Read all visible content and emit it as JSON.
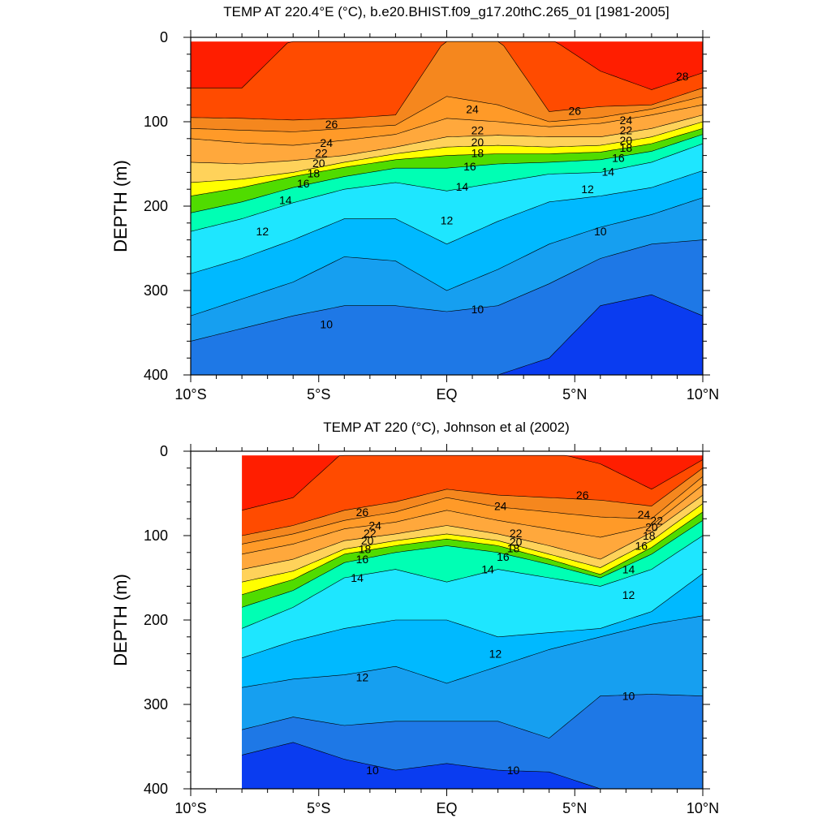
{
  "chart_data": [
    {
      "type": "contour",
      "title": "TEMP AT 220.4°E (°C), b.e20.BHIST.f09_g17.20thC.265_01 [1981-2005]",
      "ylabel": "DEPTH (m)",
      "xlabel": "",
      "x_ticks": [
        "10°S",
        "5°S",
        "EQ",
        "5°N",
        "10°N"
      ],
      "x_tick_values": [
        -10,
        -5,
        0,
        5,
        10
      ],
      "y_ticks": [
        "0",
        "100",
        "200",
        "300",
        "400"
      ],
      "y_tick_values": [
        0,
        100,
        200,
        300,
        400
      ],
      "xlim": [
        -10,
        10
      ],
      "ylim": [
        0,
        400
      ],
      "y_reversed": true,
      "contour_interval": 1,
      "contour_levels": [
        8,
        9,
        10,
        11,
        12,
        13,
        14,
        15,
        16,
        17,
        18,
        19,
        20,
        21,
        22,
        23,
        24,
        25,
        26,
        27,
        28
      ],
      "data_extent": {
        "lat": [
          -10,
          10
        ],
        "depth": [
          5,
          400
        ]
      },
      "isotherm_depths": {
        "lat": [
          -10,
          -8,
          -6,
          -4,
          -2,
          0,
          2,
          4,
          6,
          8,
          10
        ],
        "27": [
          60,
          60,
          0,
          0,
          0,
          0,
          0,
          0,
          40,
          62,
          42
        ],
        "26": [
          95,
          96,
          98,
          96,
          92,
          0,
          0,
          88,
          82,
          80,
          60
        ],
        "25": [
          108,
          110,
          112,
          108,
          104,
          70,
          80,
          100,
          95,
          85,
          70
        ],
        "24": [
          120,
          125,
          128,
          122,
          115,
          96,
          100,
          106,
          102,
          92,
          80
        ],
        "22": [
          148,
          150,
          146,
          140,
          130,
          118,
          116,
          118,
          118,
          108,
          92
        ],
        "20": [
          172,
          168,
          160,
          148,
          138,
          130,
          128,
          130,
          128,
          118,
          100
        ],
        "18": [
          188,
          178,
          165,
          154,
          145,
          140,
          138,
          138,
          136,
          126,
          108
        ],
        "16": [
          208,
          195,
          178,
          165,
          155,
          155,
          150,
          148,
          145,
          135,
          115
        ],
        "14": [
          230,
          215,
          196,
          180,
          172,
          182,
          172,
          162,
          160,
          148,
          126
        ],
        "12": [
          280,
          262,
          240,
          215,
          215,
          245,
          218,
          195,
          188,
          178,
          158
        ],
        "11": [
          330,
          310,
          290,
          260,
          265,
          300,
          275,
          245,
          225,
          210,
          190
        ],
        "10": [
          360,
          345,
          330,
          318,
          318,
          325,
          318,
          292,
          262,
          245,
          240
        ],
        "9": [
          400,
          400,
          400,
          400,
          400,
          400,
          400,
          380,
          318,
          305,
          330
        ]
      },
      "labels": [
        {
          "text": "28",
          "lat": 9.2,
          "depth": 46
        },
        {
          "text": "26",
          "lat": -4.5,
          "depth": 103
        },
        {
          "text": "26",
          "lat": 5.0,
          "depth": 87
        },
        {
          "text": "24",
          "lat": 1.0,
          "depth": 85
        },
        {
          "text": "24",
          "lat": 7.0,
          "depth": 98
        },
        {
          "text": "24",
          "lat": -4.7,
          "depth": 125
        },
        {
          "text": "22",
          "lat": 1.2,
          "depth": 110
        },
        {
          "text": "22",
          "lat": 7.0,
          "depth": 110
        },
        {
          "text": "22",
          "lat": -4.9,
          "depth": 137
        },
        {
          "text": "20",
          "lat": 1.2,
          "depth": 124
        },
        {
          "text": "20",
          "lat": 7.0,
          "depth": 122
        },
        {
          "text": "20",
          "lat": -5.0,
          "depth": 149
        },
        {
          "text": "18",
          "lat": 1.2,
          "depth": 137
        },
        {
          "text": "18",
          "lat": 7.0,
          "depth": 131
        },
        {
          "text": "18",
          "lat": -5.2,
          "depth": 161
        },
        {
          "text": "16",
          "lat": 0.9,
          "depth": 153
        },
        {
          "text": "16",
          "lat": 6.7,
          "depth": 143
        },
        {
          "text": "16",
          "lat": -5.6,
          "depth": 173
        },
        {
          "text": "14",
          "lat": 0.6,
          "depth": 177
        },
        {
          "text": "14",
          "lat": 6.3,
          "depth": 159
        },
        {
          "text": "14",
          "lat": -6.3,
          "depth": 193
        },
        {
          "text": "12",
          "lat": 0.0,
          "depth": 217
        },
        {
          "text": "12",
          "lat": 5.5,
          "depth": 180
        },
        {
          "text": "12",
          "lat": -7.2,
          "depth": 230
        },
        {
          "text": "10",
          "lat": 1.2,
          "depth": 322
        },
        {
          "text": "10",
          "lat": 6.0,
          "depth": 230
        },
        {
          "text": "10",
          "lat": -4.7,
          "depth": 340
        }
      ]
    },
    {
      "type": "contour",
      "title": "TEMP AT 220 (°C), Johnson et al (2002)",
      "ylabel": "DEPTH (m)",
      "xlabel": "",
      "x_ticks": [
        "10°S",
        "5°S",
        "EQ",
        "5°N",
        "10°N"
      ],
      "x_tick_values": [
        -10,
        -5,
        0,
        5,
        10
      ],
      "y_ticks": [
        "0",
        "100",
        "200",
        "300",
        "400"
      ],
      "y_tick_values": [
        0,
        100,
        200,
        300,
        400
      ],
      "xlim": [
        -10,
        10
      ],
      "ylim": [
        0,
        400
      ],
      "y_reversed": true,
      "contour_interval": 1,
      "contour_levels": [
        9,
        10,
        11,
        12,
        13,
        14,
        15,
        16,
        17,
        18,
        19,
        20,
        21,
        22,
        23,
        24,
        25,
        26,
        27
      ],
      "data_extent": {
        "lat": [
          -8,
          10
        ],
        "depth": [
          5,
          400
        ]
      },
      "isotherm_depths": {
        "lat": [
          -8,
          -6,
          -4,
          -2,
          0,
          2,
          4,
          6,
          8,
          10
        ],
        "27": [
          70,
          55,
          0,
          0,
          0,
          0,
          0,
          15,
          45,
          10
        ],
        "26": [
          100,
          88,
          70,
          60,
          45,
          52,
          55,
          58,
          65,
          20
        ],
        "25": [
          110,
          98,
          82,
          72,
          55,
          66,
          72,
          78,
          80,
          30
        ],
        "24": [
          122,
          110,
          92,
          84,
          70,
          82,
          92,
          102,
          88,
          40
        ],
        "22": [
          140,
          128,
          106,
          98,
          88,
          98,
          112,
          128,
          96,
          52
        ],
        "20": [
          155,
          142,
          116,
          106,
          98,
          106,
          122,
          138,
          106,
          62
        ],
        "18": [
          170,
          152,
          122,
          112,
          104,
          112,
          128,
          146,
          114,
          72
        ],
        "16": [
          185,
          165,
          132,
          120,
          112,
          120,
          134,
          150,
          122,
          82
        ],
        "14": [
          210,
          185,
          150,
          140,
          155,
          140,
          150,
          160,
          140,
          100
        ],
        "12": [
          245,
          225,
          210,
          200,
          200,
          220,
          215,
          210,
          190,
          145
        ],
        "11": [
          280,
          270,
          265,
          255,
          275,
          255,
          235,
          220,
          205,
          195
        ],
        "10": [
          330,
          315,
          325,
          320,
          320,
          320,
          340,
          290,
          288,
          290
        ],
        "9": [
          360,
          345,
          365,
          378,
          370,
          378,
          380,
          400,
          400,
          400
        ]
      },
      "labels": [
        {
          "text": "26",
          "lat": -3.3,
          "depth": 72
        },
        {
          "text": "26",
          "lat": 5.3,
          "depth": 52
        },
        {
          "text": "24",
          "lat": 2.1,
          "depth": 65
        },
        {
          "text": "24",
          "lat": 7.7,
          "depth": 75
        },
        {
          "text": "24",
          "lat": -2.8,
          "depth": 88
        },
        {
          "text": "22",
          "lat": 2.7,
          "depth": 97
        },
        {
          "text": "22",
          "lat": 8.2,
          "depth": 82
        },
        {
          "text": "22",
          "lat": -3.0,
          "depth": 97
        },
        {
          "text": "20",
          "lat": 2.7,
          "depth": 107
        },
        {
          "text": "20",
          "lat": 8.0,
          "depth": 90
        },
        {
          "text": "20",
          "lat": -3.1,
          "depth": 106
        },
        {
          "text": "18",
          "lat": 2.6,
          "depth": 115
        },
        {
          "text": "18",
          "lat": 7.9,
          "depth": 100
        },
        {
          "text": "18",
          "lat": -3.2,
          "depth": 116
        },
        {
          "text": "16",
          "lat": 2.2,
          "depth": 125
        },
        {
          "text": "16",
          "lat": 7.6,
          "depth": 112
        },
        {
          "text": "16",
          "lat": -3.3,
          "depth": 128
        },
        {
          "text": "14",
          "lat": 1.6,
          "depth": 140
        },
        {
          "text": "14",
          "lat": 7.1,
          "depth": 140
        },
        {
          "text": "14",
          "lat": -3.5,
          "depth": 150
        },
        {
          "text": "12",
          "lat": 1.9,
          "depth": 240
        },
        {
          "text": "12",
          "lat": 7.1,
          "depth": 170
        },
        {
          "text": "12",
          "lat": -3.3,
          "depth": 268
        },
        {
          "text": "10",
          "lat": 2.6,
          "depth": 378
        },
        {
          "text": "10",
          "lat": 7.1,
          "depth": 290
        },
        {
          "text": "10",
          "lat": -2.9,
          "depth": 378
        }
      ]
    }
  ],
  "colors": {
    "background": "#ffffff",
    "palette": {
      "8": "#0000ff",
      "9": "#0a3cf0",
      "10": "#1e78e6",
      "11": "#169ff0",
      "12": "#00b9ff",
      "13": "#00d2f0",
      "14": "#1ee6ff",
      "15": "#50faff",
      "16": "#00ffb4",
      "17": "#00f050",
      "18": "#50dc00",
      "19": "#aaf000",
      "20": "#ffff00",
      "21": "#ffe66e",
      "22": "#ffd25a",
      "23": "#ffbe46",
      "24": "#ffa83c",
      "25": "#ff9a28",
      "26": "#f5871e",
      "27": "#ff4b00",
      "28": "#ff1e00"
    }
  }
}
